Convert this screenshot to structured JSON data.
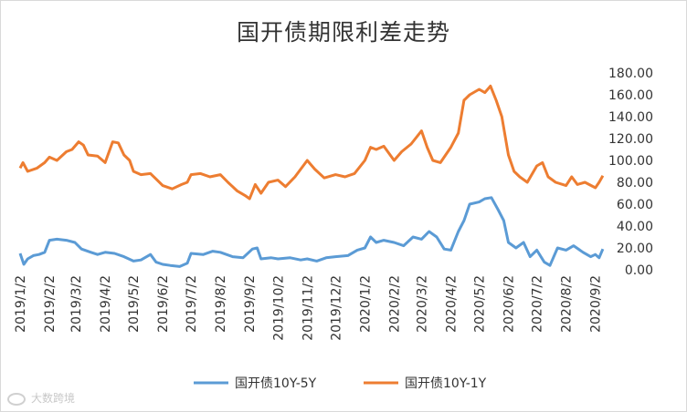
{
  "chart_data": {
    "type": "line",
    "title": "国开债期限利差走势",
    "ylim": [
      0,
      180
    ],
    "yticks": [
      "0.00",
      "20.00",
      "40.00",
      "60.00",
      "80.00",
      "100.00",
      "120.00",
      "140.00",
      "160.00",
      "180.00"
    ],
    "x_tick_labels": [
      "2019/1/2",
      "2019/2/2",
      "2019/3/2",
      "2019/4/2",
      "2019/5/2",
      "2019/6/2",
      "2019/7/2",
      "2019/8/2",
      "2019/9/2",
      "2019/10/2",
      "2019/11/2",
      "2019/12/2",
      "2020/1/2",
      "2020/2/2",
      "2020/3/2",
      "2020/4/2",
      "2020/5/2",
      "2020/6/2",
      "2020/7/2",
      "2020/8/2",
      "2020/9/2"
    ],
    "legend_position": "bottom",
    "grid": false,
    "series": [
      {
        "name": "国开债10Y-5Y",
        "color": "#5b9bd5",
        "points": [
          [
            "2019/1/2",
            15
          ],
          [
            "2019/1/6",
            5
          ],
          [
            "2019/1/10",
            10
          ],
          [
            "2019/1/16",
            13
          ],
          [
            "2019/1/22",
            14
          ],
          [
            "2019/1/28",
            16
          ],
          [
            "2019/2/2",
            27
          ],
          [
            "2019/2/10",
            28
          ],
          [
            "2019/2/20",
            27
          ],
          [
            "2019/3/1",
            25
          ],
          [
            "2019/3/8",
            19
          ],
          [
            "2019/3/18",
            16
          ],
          [
            "2019/3/25",
            14
          ],
          [
            "2019/4/2",
            16
          ],
          [
            "2019/4/12",
            15
          ],
          [
            "2019/4/22",
            12
          ],
          [
            "2019/5/2",
            8
          ],
          [
            "2019/5/10",
            9
          ],
          [
            "2019/5/20",
            14
          ],
          [
            "2019/5/26",
            7
          ],
          [
            "2019/6/2",
            5
          ],
          [
            "2019/6/10",
            4
          ],
          [
            "2019/6/20",
            3
          ],
          [
            "2019/6/28",
            6
          ],
          [
            "2019/7/2",
            15
          ],
          [
            "2019/7/15",
            14
          ],
          [
            "2019/7/25",
            17
          ],
          [
            "2019/8/2",
            16
          ],
          [
            "2019/8/15",
            12
          ],
          [
            "2019/8/26",
            11
          ],
          [
            "2019/9/5",
            19
          ],
          [
            "2019/9/10",
            20
          ],
          [
            "2019/9/14",
            10
          ],
          [
            "2019/9/25",
            11
          ],
          [
            "2019/10/2",
            10
          ],
          [
            "2019/10/15",
            11
          ],
          [
            "2019/10/26",
            9
          ],
          [
            "2019/11/2",
            10
          ],
          [
            "2019/11/12",
            8
          ],
          [
            "2019/11/22",
            11
          ],
          [
            "2019/12/2",
            12
          ],
          [
            "2019/12/15",
            13
          ],
          [
            "2019/12/25",
            18
          ],
          [
            "2020/1/2",
            20
          ],
          [
            "2020/1/8",
            30
          ],
          [
            "2020/1/14",
            25
          ],
          [
            "2020/1/22",
            27
          ],
          [
            "2020/2/2",
            25
          ],
          [
            "2020/2/12",
            22
          ],
          [
            "2020/2/22",
            30
          ],
          [
            "2020/3/2",
            28
          ],
          [
            "2020/3/10",
            35
          ],
          [
            "2020/3/18",
            30
          ],
          [
            "2020/3/26",
            19
          ],
          [
            "2020/4/2",
            18
          ],
          [
            "2020/4/10",
            35
          ],
          [
            "2020/4/16",
            45
          ],
          [
            "2020/4/22",
            60
          ],
          [
            "2020/5/2",
            62
          ],
          [
            "2020/5/8",
            65
          ],
          [
            "2020/5/15",
            66
          ],
          [
            "2020/5/22",
            55
          ],
          [
            "2020/5/28",
            45
          ],
          [
            "2020/6/2",
            25
          ],
          [
            "2020/6/10",
            20
          ],
          [
            "2020/6/18",
            25
          ],
          [
            "2020/6/25",
            12
          ],
          [
            "2020/7/2",
            18
          ],
          [
            "2020/7/10",
            7
          ],
          [
            "2020/7/16",
            4
          ],
          [
            "2020/7/24",
            20
          ],
          [
            "2020/8/2",
            18
          ],
          [
            "2020/8/10",
            22
          ],
          [
            "2020/8/20",
            16
          ],
          [
            "2020/8/28",
            12
          ],
          [
            "2020/9/2",
            14
          ],
          [
            "2020/9/6",
            11
          ],
          [
            "2020/9/10",
            19
          ]
        ]
      },
      {
        "name": "国开债10Y-1Y",
        "color": "#ed7d31",
        "points": [
          [
            "2019/1/2",
            93
          ],
          [
            "2019/1/5",
            98
          ],
          [
            "2019/1/10",
            90
          ],
          [
            "2019/1/20",
            93
          ],
          [
            "2019/1/28",
            98
          ],
          [
            "2019/2/2",
            103
          ],
          [
            "2019/2/10",
            100
          ],
          [
            "2019/2/20",
            108
          ],
          [
            "2019/2/26",
            110
          ],
          [
            "2019/3/5",
            117
          ],
          [
            "2019/3/10",
            114
          ],
          [
            "2019/3/15",
            105
          ],
          [
            "2019/3/25",
            104
          ],
          [
            "2019/4/2",
            98
          ],
          [
            "2019/4/10",
            117
          ],
          [
            "2019/4/16",
            116
          ],
          [
            "2019/4/22",
            105
          ],
          [
            "2019/4/28",
            100
          ],
          [
            "2019/5/2",
            90
          ],
          [
            "2019/5/10",
            87
          ],
          [
            "2019/5/20",
            88
          ],
          [
            "2019/5/26",
            83
          ],
          [
            "2019/6/2",
            77
          ],
          [
            "2019/6/12",
            74
          ],
          [
            "2019/6/22",
            78
          ],
          [
            "2019/6/28",
            80
          ],
          [
            "2019/7/2",
            87
          ],
          [
            "2019/7/12",
            88
          ],
          [
            "2019/7/22",
            85
          ],
          [
            "2019/8/2",
            87
          ],
          [
            "2019/8/10",
            80
          ],
          [
            "2019/8/20",
            72
          ],
          [
            "2019/8/28",
            68
          ],
          [
            "2019/9/2",
            65
          ],
          [
            "2019/9/8",
            78
          ],
          [
            "2019/9/14",
            70
          ],
          [
            "2019/9/22",
            80
          ],
          [
            "2019/10/2",
            82
          ],
          [
            "2019/10/10",
            76
          ],
          [
            "2019/10/20",
            85
          ],
          [
            "2019/11/2",
            100
          ],
          [
            "2019/11/10",
            92
          ],
          [
            "2019/11/20",
            84
          ],
          [
            "2019/12/2",
            87
          ],
          [
            "2019/12/12",
            85
          ],
          [
            "2019/12/22",
            88
          ],
          [
            "2020/1/2",
            100
          ],
          [
            "2020/1/8",
            112
          ],
          [
            "2020/1/14",
            110
          ],
          [
            "2020/1/22",
            113
          ],
          [
            "2020/2/2",
            100
          ],
          [
            "2020/2/10",
            108
          ],
          [
            "2020/2/20",
            115
          ],
          [
            "2020/3/2",
            127
          ],
          [
            "2020/3/8",
            112
          ],
          [
            "2020/3/14",
            100
          ],
          [
            "2020/3/22",
            98
          ],
          [
            "2020/4/2",
            112
          ],
          [
            "2020/4/10",
            125
          ],
          [
            "2020/4/16",
            155
          ],
          [
            "2020/4/22",
            160
          ],
          [
            "2020/5/2",
            165
          ],
          [
            "2020/5/8",
            162
          ],
          [
            "2020/5/14",
            168
          ],
          [
            "2020/5/20",
            155
          ],
          [
            "2020/5/26",
            140
          ],
          [
            "2020/6/2",
            105
          ],
          [
            "2020/6/8",
            90
          ],
          [
            "2020/6/14",
            85
          ],
          [
            "2020/6/22",
            80
          ],
          [
            "2020/7/2",
            95
          ],
          [
            "2020/7/8",
            98
          ],
          [
            "2020/7/14",
            85
          ],
          [
            "2020/7/22",
            80
          ],
          [
            "2020/8/2",
            77
          ],
          [
            "2020/8/8",
            85
          ],
          [
            "2020/8/14",
            78
          ],
          [
            "2020/8/22",
            80
          ],
          [
            "2020/9/2",
            75
          ],
          [
            "2020/9/6",
            80
          ],
          [
            "2020/9/10",
            86
          ]
        ]
      }
    ]
  },
  "watermark": {
    "text": "大数跨境",
    "icon": "watermark-logo-icon"
  }
}
